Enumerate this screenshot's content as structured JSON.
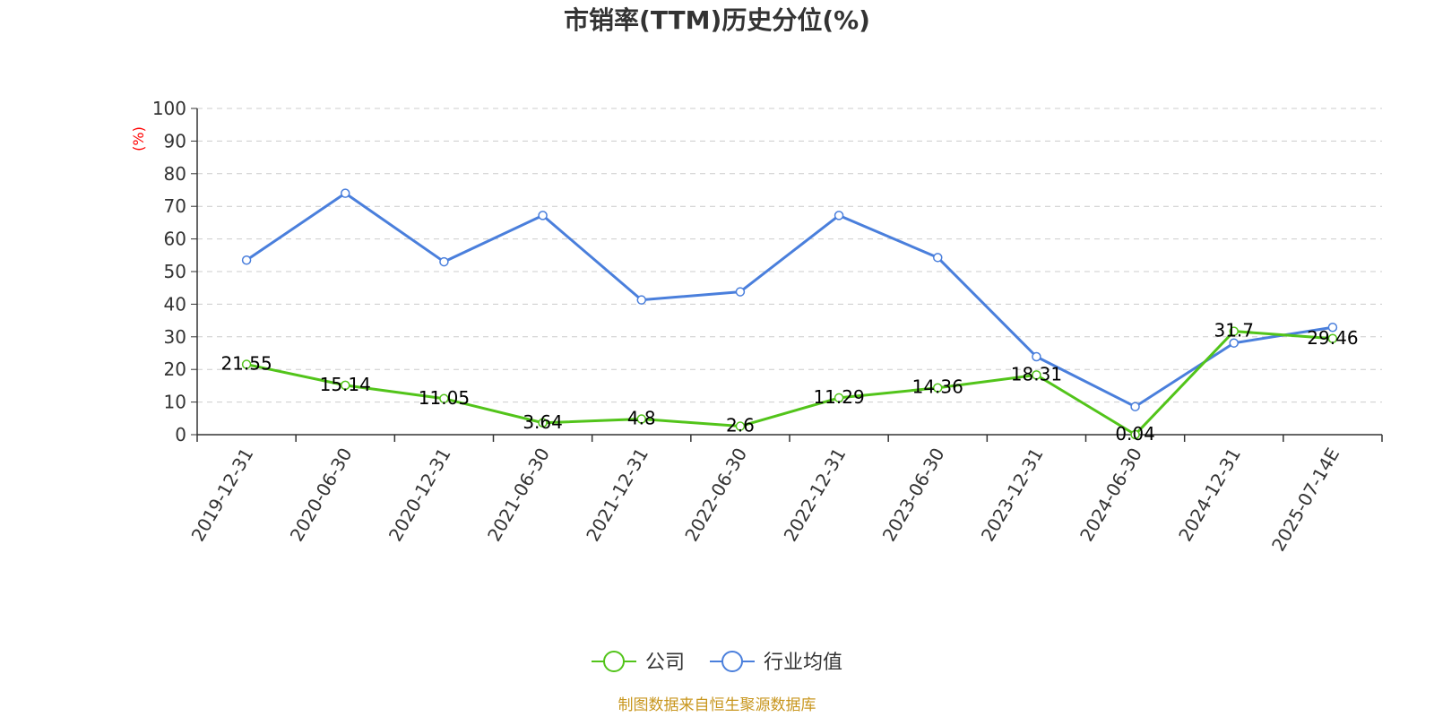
{
  "chart_data": {
    "type": "line",
    "title": "市销率(TTM)历史分位(%)",
    "ylabel": "(%)",
    "ylim": [
      0,
      100
    ],
    "yticks": [
      0,
      10,
      20,
      30,
      40,
      50,
      60,
      70,
      80,
      90,
      100
    ],
    "grid": true,
    "legend_position": "bottom",
    "categories": [
      "2019-12-31",
      "2020-06-30",
      "2020-12-31",
      "2021-06-30",
      "2021-12-31",
      "2022-06-30",
      "2022-12-31",
      "2023-06-30",
      "2023-12-31",
      "2024-06-30",
      "2024-12-31",
      "2025-07-14E"
    ],
    "series": [
      {
        "name": "公司",
        "color": "#52c41a",
        "show_labels": true,
        "values": [
          21.55,
          15.14,
          11.05,
          3.64,
          4.8,
          2.6,
          11.29,
          14.36,
          18.31,
          0.04,
          31.7,
          29.46
        ]
      },
      {
        "name": "行业均值",
        "color": "#4a7fdc",
        "show_labels": false,
        "values": [
          53.5,
          74.0,
          53.0,
          67.2,
          41.3,
          43.8,
          67.2,
          54.3,
          23.9,
          8.6,
          28.1,
          32.9
        ]
      }
    ],
    "source": "制图数据来自恒生聚源数据库",
    "colors": {
      "axis": "#333333",
      "grid": "#cccccc",
      "unit": "#ff0000",
      "source": "#c8961e"
    }
  }
}
